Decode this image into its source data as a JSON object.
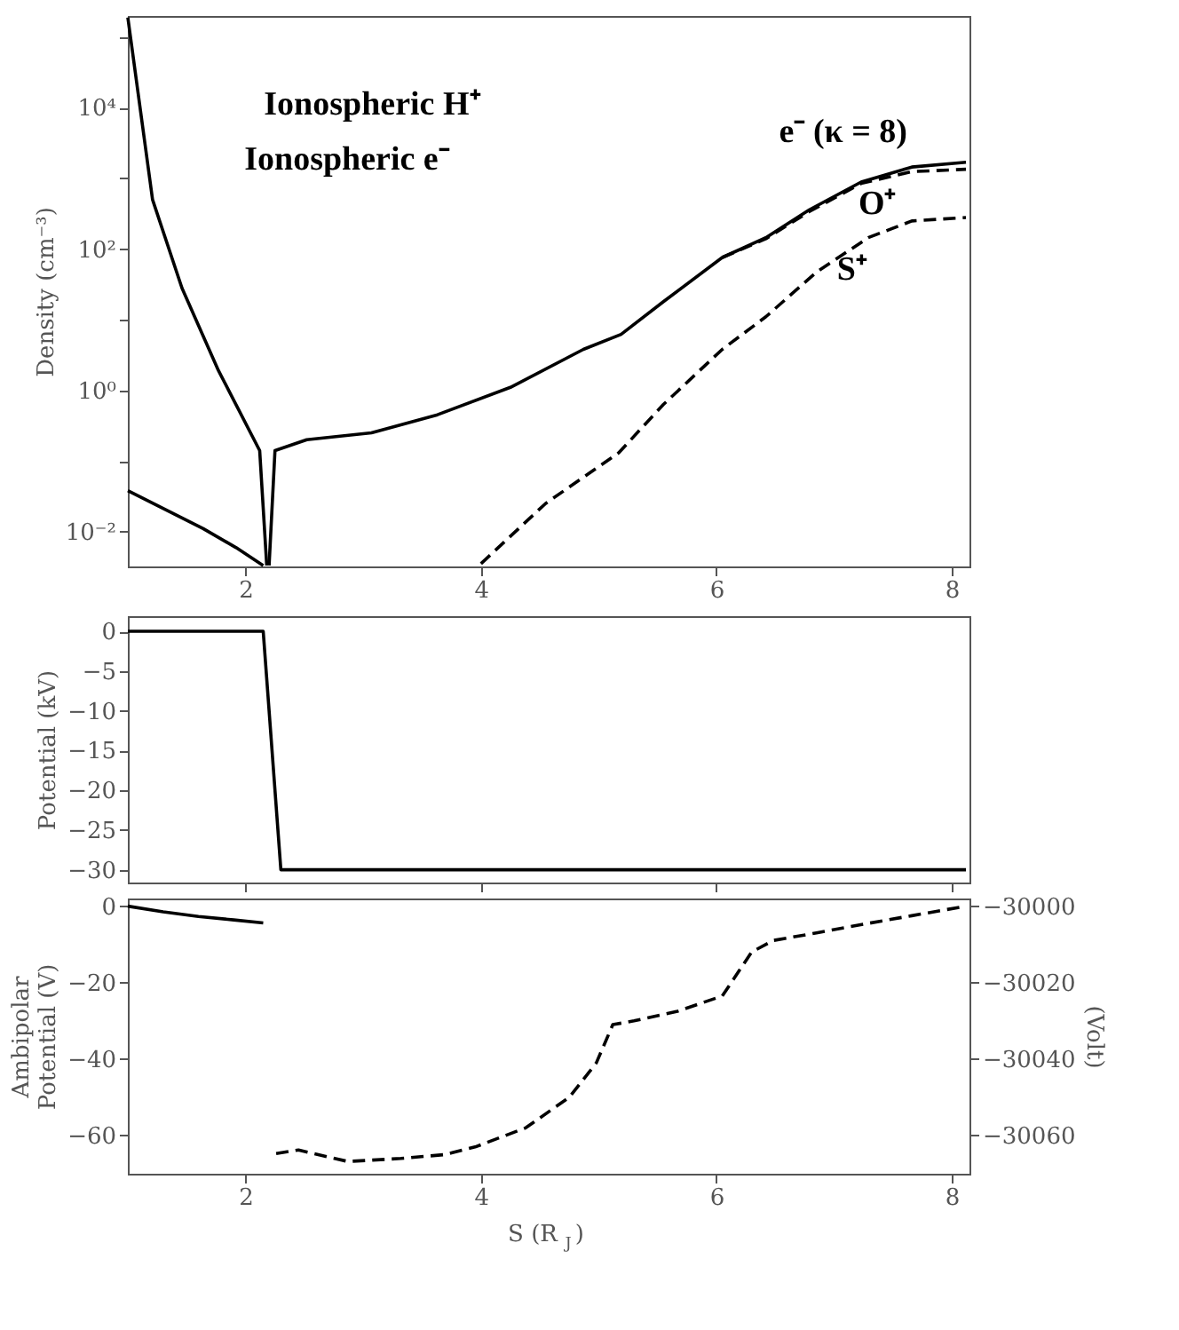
{
  "chart_data": [
    {
      "type": "line",
      "ylabel": "Density (cm⁻³)",
      "log": "y",
      "xlim": [
        1,
        8.15
      ],
      "xticks": [
        2,
        4,
        6,
        8
      ],
      "ylim": [
        0.0032,
        200000
      ],
      "yticks": [
        {
          "value": 0.01,
          "label": "10⁻²"
        },
        {
          "value": 0.1,
          "label": null
        },
        {
          "value": 1,
          "label": "10⁰"
        },
        {
          "value": 10,
          "label": null
        },
        {
          "value": 100,
          "label": "10²"
        },
        {
          "value": 1000,
          "label": null
        },
        {
          "value": 10000,
          "label": "10⁴"
        },
        {
          "value": 100000,
          "label": null
        }
      ],
      "grid": false,
      "series": [
        {
          "color": "#000000",
          "line_style": "solid",
          "x": [
            1.0,
            1.21,
            1.46,
            1.77,
            2.12,
            2.18
          ],
          "values": [
            190000,
            500,
            28,
            1.9,
            0.14,
            0.0033
          ]
        },
        {
          "color": "#000000",
          "line_style": "solid",
          "x": [
            1.0,
            1.64,
            1.92,
            2.15
          ],
          "values": [
            0.038,
            0.011,
            0.0059,
            0.0033
          ]
        },
        {
          "color": "#000000",
          "line_style": "solid",
          "x": [
            2.2,
            2.25,
            2.52,
            3.07,
            3.63,
            4.25,
            4.87,
            5.19,
            5.55,
            6.05,
            6.42,
            6.79,
            7.23,
            7.66,
            8.12
          ],
          "values": [
            0.0033,
            0.14,
            0.2,
            0.25,
            0.45,
            1.1,
            3.8,
            6.2,
            18,
            76,
            145,
            360,
            890,
            1450,
            1700
          ]
        },
        {
          "color": "#000000",
          "line_style": "dashed",
          "x": [
            6.05,
            6.42,
            6.79,
            7.23,
            7.66,
            8.12
          ],
          "values": [
            76,
            140,
            340,
            850,
            1250,
            1350
          ]
        },
        {
          "color": "#000000",
          "line_style": "dashed",
          "x": [
            4.0,
            4.55,
            5.17,
            5.55,
            6.05,
            6.42,
            6.85,
            7.29,
            7.66,
            8.12
          ],
          "values": [
            0.0035,
            0.025,
            0.13,
            0.63,
            3.8,
            11,
            47,
            145,
            250,
            280
          ]
        }
      ],
      "annotations": [
        "Ionospheric H⁺",
        "Ionospheric e⁻",
        "e⁻ (κ = 8)",
        "O⁺",
        "S⁺"
      ]
    },
    {
      "type": "line",
      "ylabel": "Potential (kV)",
      "xlim": [
        1,
        8.15
      ],
      "xticks": [
        2,
        4,
        6,
        8
      ],
      "ylim": [
        -31.6,
        1.9
      ],
      "yticks": [
        0,
        -5,
        -10,
        -15,
        -20,
        -25,
        -30
      ],
      "tick_labels": "y",
      "grid": false,
      "series": [
        {
          "color": "#000000",
          "line_style": "solid",
          "x": [
            1.0,
            2.15,
            2.3,
            8.12
          ],
          "values": [
            0,
            0,
            -30,
            -30
          ]
        }
      ]
    },
    {
      "type": "line",
      "xlabel": "S (R$_{J}$)",
      "ylabel": "Ambipolar\nPotential (V)",
      "y2label": "(Volt)",
      "xlim": [
        1,
        8.15
      ],
      "xticks": [
        2,
        4,
        6,
        8
      ],
      "ylim": [
        -70,
        2
      ],
      "yticks": [
        0,
        -20,
        -40,
        -60
      ],
      "y2lim": [
        -30070,
        -29998
      ],
      "y2ticks": [
        -30000,
        -30020,
        -30040,
        -30060
      ],
      "grid": false,
      "series": [
        {
          "color": "#000000",
          "line_style": "solid",
          "x": [
            1.0,
            1.3,
            1.6,
            1.9,
            2.15
          ],
          "values": [
            0,
            -1.5,
            -2.7,
            -3.6,
            -4.4
          ]
        },
        {
          "color": "#000000",
          "line_style": "dashed",
          "axis": "y2",
          "x": [
            2.26,
            2.45,
            2.87,
            3.32,
            3.69,
            3.95,
            4.38,
            4.75,
            4.98,
            5.12,
            5.3,
            5.67,
            6.05,
            6.3,
            6.48,
            6.85,
            7.29,
            7.66,
            8.12
          ],
          "values": [
            -30064.7,
            -30063.8,
            -30066.8,
            -30066,
            -30065,
            -30063,
            -30058,
            -30050,
            -30041,
            -30031,
            -30030,
            -30027.5,
            -30023.5,
            -30012,
            -30009,
            -30007,
            -30004.5,
            -30002.5,
            -30000
          ]
        }
      ]
    }
  ]
}
